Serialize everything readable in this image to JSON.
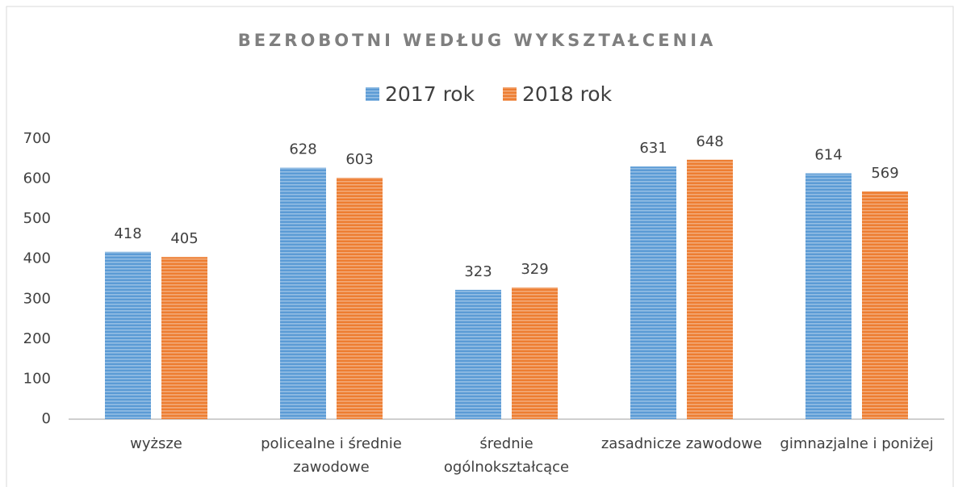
{
  "chart_data": {
    "type": "bar",
    "title": "BEZROBOTNI WEDŁUG WYKSZTAŁCENIA",
    "categories": [
      [
        "wyższe"
      ],
      [
        "policealne i średnie",
        "zawodowe"
      ],
      [
        "średnie",
        "ogólnokształcące"
      ],
      [
        "zasadnicze zawodowe"
      ],
      [
        "gimnazjalne i poniżej"
      ]
    ],
    "series": [
      {
        "name": "2017 rok",
        "color": "#5b9bd5",
        "values": [
          418,
          628,
          323,
          631,
          614
        ]
      },
      {
        "name": "2018 rok",
        "color": "#ed7d31",
        "values": [
          405,
          603,
          329,
          648,
          569
        ]
      }
    ],
    "ylim": [
      0,
      700
    ],
    "yticks": [
      0,
      100,
      200,
      300,
      400,
      500,
      600,
      700
    ],
    "grid": false
  }
}
